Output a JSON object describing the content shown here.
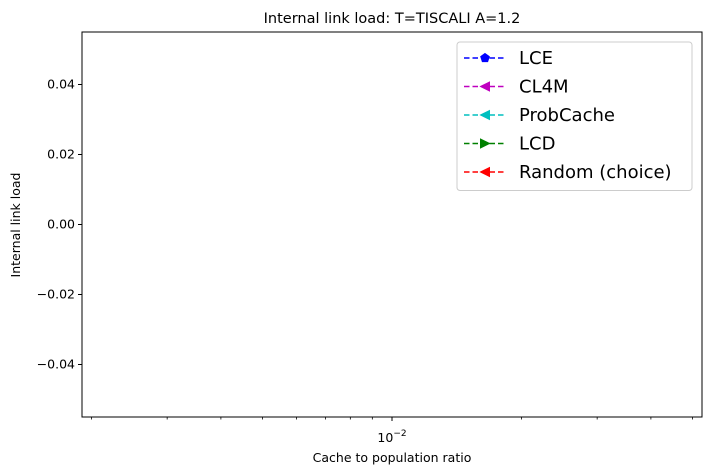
{
  "chart_data": {
    "type": "line",
    "title": "Internal link load: T=TISCALI A=1.2",
    "xlabel": "Cache to population ratio",
    "ylabel": "Internal link load",
    "x_scale": "log",
    "ylim": [
      -0.055,
      0.055
    ],
    "y_ticks": [
      {
        "value": 0.04,
        "label": "0.04"
      },
      {
        "value": 0.02,
        "label": "0.02"
      },
      {
        "value": 0.0,
        "label": "0.00"
      },
      {
        "value": -0.02,
        "label": "−0.02"
      },
      {
        "value": -0.04,
        "label": "−0.04"
      }
    ],
    "x_ticks": [
      {
        "value": 0.01,
        "label_base": "10",
        "label_exp": "−2"
      }
    ],
    "grid": false,
    "legend_position": "top-right",
    "series": [
      {
        "name": "LCE",
        "color": "#0000ff",
        "marker": "pentagon",
        "x": [],
        "y": []
      },
      {
        "name": "CL4M",
        "color": "#bf00bf",
        "marker": "triangle-left",
        "x": [],
        "y": []
      },
      {
        "name": "ProbCache",
        "color": "#00bfbf",
        "marker": "triangle-left",
        "x": [],
        "y": []
      },
      {
        "name": "LCD",
        "color": "#008000",
        "marker": "triangle-right",
        "x": [],
        "y": []
      },
      {
        "name": "Random (choice)",
        "color": "#ff0000",
        "marker": "triangle-left",
        "x": [],
        "y": []
      }
    ]
  }
}
